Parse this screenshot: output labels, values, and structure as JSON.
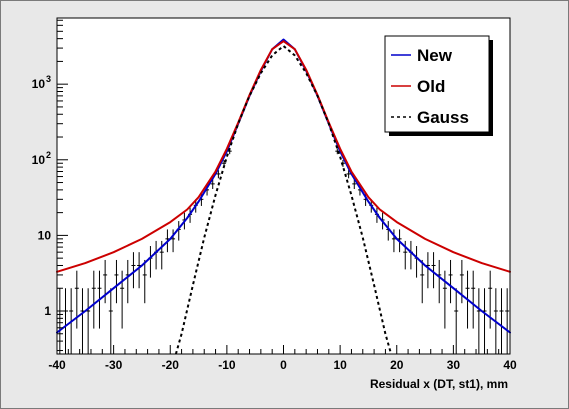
{
  "chart_data": {
    "type": "line",
    "title": "",
    "xlabel": "Residual x (DT, st1), mm",
    "ylabel": "",
    "xlim": [
      -40,
      40
    ],
    "ylim": [
      0.27,
      7500
    ],
    "yscale": "log",
    "grid": false,
    "legend_position": "top-right",
    "x_ticks": [
      -40,
      -30,
      -20,
      -10,
      0,
      10,
      20,
      30,
      40
    ],
    "x_tick_labels": [
      "-40",
      "-30",
      "-20",
      "-10",
      "0",
      "10",
      "20",
      "30",
      "40"
    ],
    "y_ticks": [
      1,
      10,
      100,
      1000
    ],
    "y_tick_labels": [
      {
        "base": "1",
        "exp": ""
      },
      {
        "base": "10",
        "exp": ""
      },
      {
        "base": "10",
        "exp": "2"
      },
      {
        "base": "10",
        "exp": "3"
      }
    ],
    "series": [
      {
        "name": "New",
        "color": "#0000cc",
        "style": "solid",
        "x": [
          -40,
          -35,
          -30,
          -25,
          -20,
          -17,
          -15,
          -12,
          -10,
          -8,
          -6,
          -4,
          -2,
          0,
          2,
          4,
          6,
          8,
          10,
          12,
          15,
          17,
          20,
          25,
          30,
          35,
          40
        ],
        "y": [
          0.52,
          1.0,
          2.0,
          4.0,
          9.0,
          17,
          28,
          65,
          130,
          300,
          700,
          1500,
          2900,
          3900,
          2900,
          1500,
          700,
          300,
          130,
          65,
          28,
          17,
          9.0,
          4.0,
          2.0,
          1.0,
          0.52
        ]
      },
      {
        "name": "Old",
        "color": "#cc0000",
        "style": "solid",
        "x": [
          -40,
          -35,
          -30,
          -25,
          -20,
          -17,
          -15,
          -12,
          -10,
          -8,
          -6,
          -4,
          -2,
          0,
          2,
          4,
          6,
          8,
          10,
          12,
          15,
          17,
          20,
          25,
          30,
          35,
          40
        ],
        "y": [
          3.3,
          4.3,
          6.0,
          9.0,
          15,
          22,
          32,
          70,
          140,
          310,
          720,
          1550,
          2900,
          3700,
          2900,
          1550,
          720,
          310,
          140,
          70,
          32,
          22,
          15,
          9.0,
          6.0,
          4.3,
          3.3
        ]
      },
      {
        "name": "Gauss",
        "color": "#000000",
        "style": "dashed",
        "x": [
          -19,
          -18,
          -16,
          -14,
          -12,
          -10,
          -8,
          -6,
          -4,
          -2,
          0,
          2,
          4,
          6,
          8,
          10,
          12,
          14,
          16,
          18,
          19
        ],
        "y": [
          0.27,
          0.5,
          2.2,
          9.3,
          34,
          110,
          300,
          700,
          1400,
          2400,
          3200,
          2400,
          1400,
          700,
          300,
          110,
          34,
          9.3,
          2.2,
          0.5,
          0.27
        ]
      }
    ],
    "data_points": {
      "name": "",
      "color": "#000000",
      "x": [
        -39.5,
        -38.5,
        -37.5,
        -36.5,
        -35.5,
        -34.5,
        -33.5,
        -32.5,
        -31.5,
        -30.5,
        -29.5,
        -28.5,
        -27.5,
        -26.5,
        -25.5,
        -24.5,
        -23.5,
        -22.5,
        -21.5,
        -20.5,
        -19.5,
        -18.5,
        -17.5,
        -16.5,
        -15.5,
        -14.5,
        -13.5,
        -12.5,
        -11.5,
        -10.5,
        -9.5,
        9.5,
        10.5,
        11.5,
        12.5,
        13.5,
        14.5,
        15.5,
        16.5,
        17.5,
        18.5,
        19.5,
        20.5,
        21.5,
        22.5,
        23.5,
        24.5,
        25.5,
        26.5,
        27.5,
        28.5,
        29.5,
        30.5,
        31.5,
        32.5,
        33.5,
        34.5,
        35.5,
        36.5,
        37.5,
        38.5,
        39.5
      ],
      "y": [
        1,
        1,
        1,
        2,
        1,
        1,
        2,
        2,
        3,
        1,
        3,
        2,
        3,
        4,
        4,
        3,
        5,
        6,
        6,
        9,
        9,
        12,
        16,
        19,
        25,
        30,
        40,
        48,
        65,
        90,
        130,
        130,
        90,
        65,
        48,
        40,
        30,
        25,
        19,
        16,
        12,
        9,
        9,
        6,
        6,
        5,
        3,
        4,
        4,
        3,
        2,
        3,
        1,
        3,
        2,
        2,
        1,
        1,
        2,
        1,
        1,
        1
      ]
    }
  }
}
